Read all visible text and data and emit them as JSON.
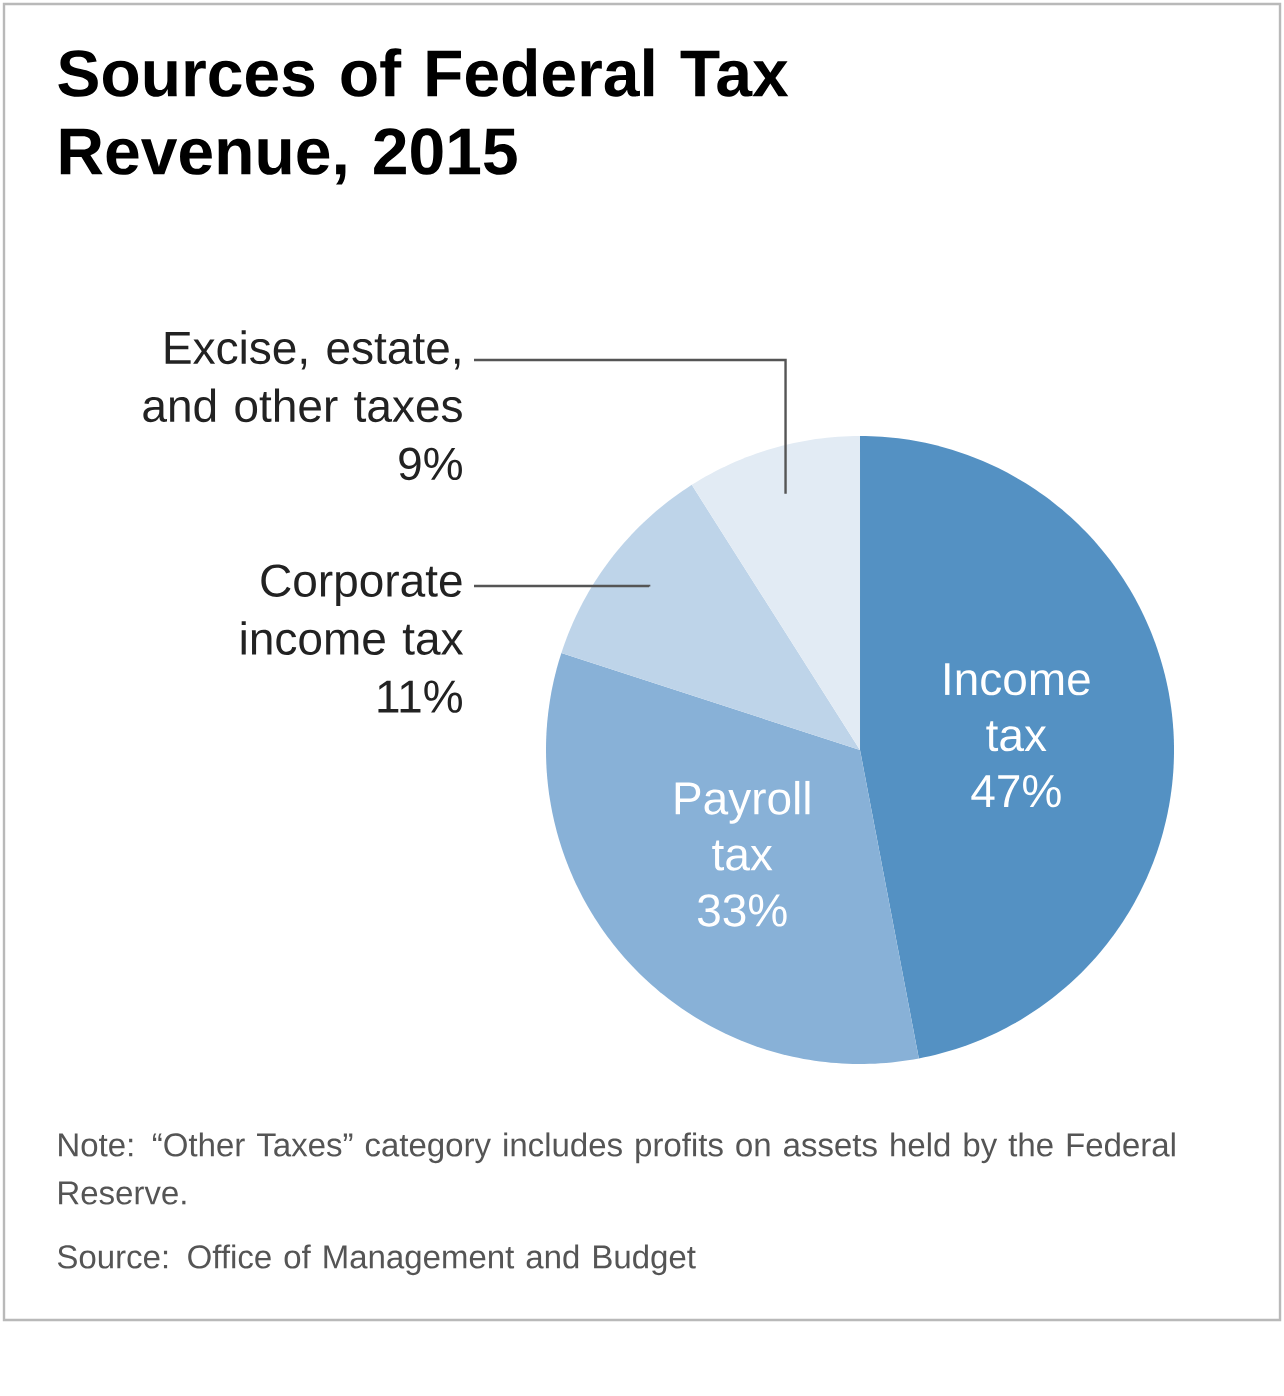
{
  "chart_data": {
    "type": "pie",
    "title": "Sources of Federal Tax Revenue, 2015",
    "categories": [
      "Income tax",
      "Payroll tax",
      "Corporate income tax",
      "Excise, estate, and other taxes"
    ],
    "values": [
      47,
      33,
      11,
      9
    ],
    "value_labels": [
      "47%",
      "33%",
      "11%",
      "9%"
    ],
    "colors": [
      "#5491c3",
      "#88b1d7",
      "#bed4e9",
      "#e2ebf4"
    ],
    "annotations": [
      "Note: “Other Taxes” category includes profits on assets held by the Federal Reserve.",
      "Source: Office of Management and Budget"
    ]
  }
}
